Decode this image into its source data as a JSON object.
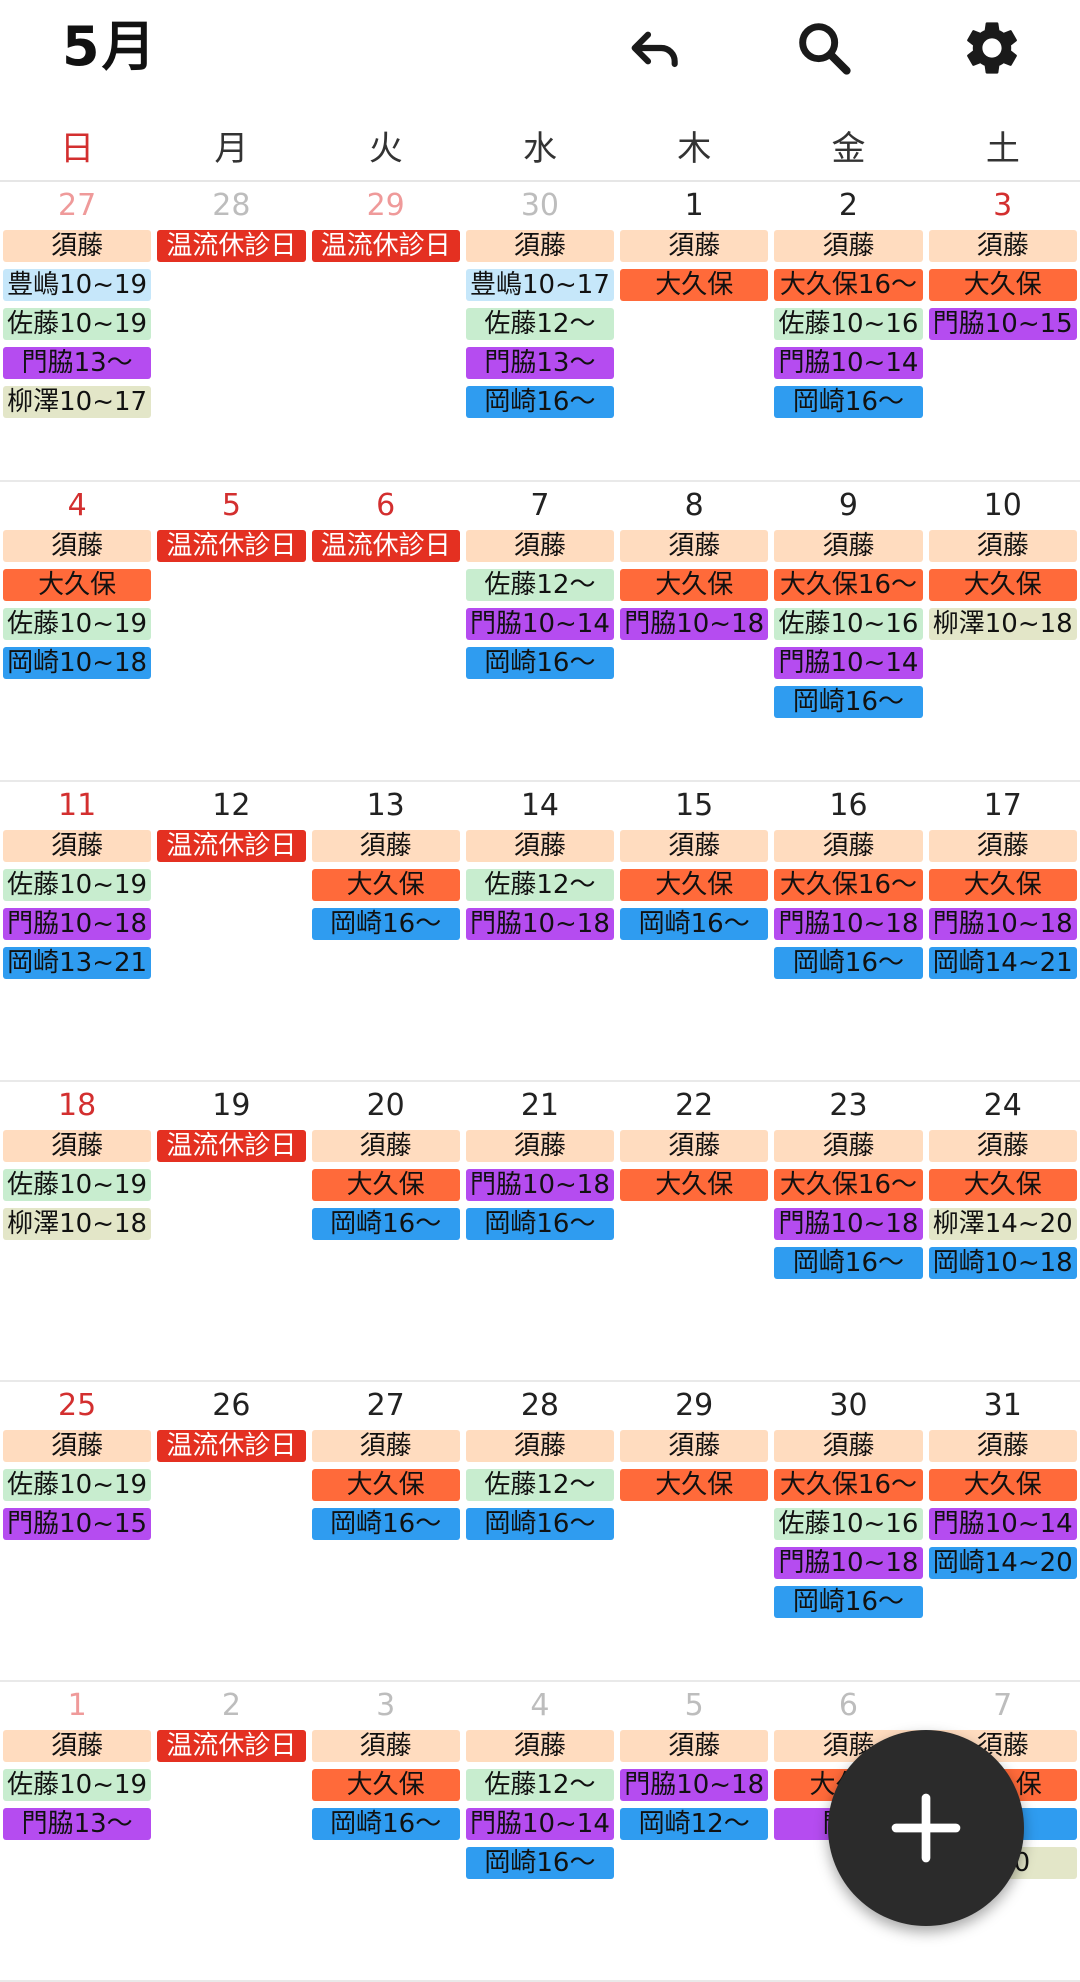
{
  "header": {
    "month": "5月"
  },
  "icons": {
    "undo": "undo-icon",
    "search": "search-icon",
    "settings": "gear-icon",
    "add": "plus-icon"
  },
  "weekdays": [
    "日",
    "月",
    "火",
    "水",
    "木",
    "金",
    "土"
  ],
  "colors": {
    "須藤": "#FFDCBF",
    "温流休診日": "#E43021",
    "大久保": "#FF6A3A",
    "豊嶋": "#C6E7FA",
    "佐藤": "#C8EDCF",
    "門脇": "#B54CF0",
    "柳澤": "#E3E6C8",
    "岡崎": "#2F9CF0"
  },
  "weeks": [
    [
      {
        "num": "27",
        "muted": true,
        "holiday": true,
        "events": [
          "須藤",
          "豊嶋10~19",
          "佐藤10~19",
          "門脇13～",
          "柳澤10~17"
        ]
      },
      {
        "num": "28",
        "muted": true,
        "holiday": false,
        "events": [
          "温流休診日"
        ]
      },
      {
        "num": "29",
        "muted": true,
        "holiday": true,
        "events": [
          "温流休診日"
        ]
      },
      {
        "num": "30",
        "muted": true,
        "holiday": false,
        "events": [
          "須藤",
          "豊嶋10~17",
          "佐藤12～",
          "門脇13～",
          "岡崎16～"
        ]
      },
      {
        "num": "1",
        "muted": false,
        "holiday": false,
        "events": [
          "須藤",
          "大久保"
        ]
      },
      {
        "num": "2",
        "muted": false,
        "holiday": false,
        "events": [
          "須藤",
          "大久保16～",
          "佐藤10~16",
          "門脇10~14",
          "岡崎16～"
        ]
      },
      {
        "num": "3",
        "muted": false,
        "holiday": true,
        "events": [
          "須藤",
          "大久保",
          "門脇10~15"
        ]
      }
    ],
    [
      {
        "num": "4",
        "muted": false,
        "holiday": true,
        "events": [
          "須藤",
          "大久保",
          "佐藤10~19",
          "岡崎10~18"
        ]
      },
      {
        "num": "5",
        "muted": false,
        "holiday": true,
        "events": [
          "温流休診日"
        ]
      },
      {
        "num": "6",
        "muted": false,
        "holiday": true,
        "events": [
          "温流休診日"
        ]
      },
      {
        "num": "7",
        "muted": false,
        "holiday": false,
        "events": [
          "須藤",
          "佐藤12～",
          "門脇10~14",
          "岡崎16～"
        ]
      },
      {
        "num": "8",
        "muted": false,
        "holiday": false,
        "events": [
          "須藤",
          "大久保",
          "門脇10~18"
        ]
      },
      {
        "num": "9",
        "muted": false,
        "holiday": false,
        "events": [
          "須藤",
          "大久保16～",
          "佐藤10~16",
          "門脇10~14",
          "岡崎16～"
        ]
      },
      {
        "num": "10",
        "muted": false,
        "holiday": false,
        "events": [
          "須藤",
          "大久保",
          "柳澤10~18"
        ]
      }
    ],
    [
      {
        "num": "11",
        "muted": false,
        "holiday": true,
        "events": [
          "須藤",
          "佐藤10~19",
          "門脇10~18",
          "岡崎13~21"
        ]
      },
      {
        "num": "12",
        "muted": false,
        "holiday": false,
        "events": [
          "温流休診日"
        ]
      },
      {
        "num": "13",
        "muted": false,
        "holiday": false,
        "events": [
          "須藤",
          "大久保",
          "岡崎16～"
        ]
      },
      {
        "num": "14",
        "muted": false,
        "holiday": false,
        "events": [
          "須藤",
          "佐藤12～",
          "門脇10~18"
        ]
      },
      {
        "num": "15",
        "muted": false,
        "holiday": false,
        "events": [
          "須藤",
          "大久保",
          "岡崎16～"
        ]
      },
      {
        "num": "16",
        "muted": false,
        "holiday": false,
        "events": [
          "須藤",
          "大久保16～",
          "門脇10~18",
          "岡崎16～"
        ]
      },
      {
        "num": "17",
        "muted": false,
        "holiday": false,
        "events": [
          "須藤",
          "大久保",
          "門脇10~18",
          "岡崎14~21"
        ]
      }
    ],
    [
      {
        "num": "18",
        "muted": false,
        "holiday": true,
        "events": [
          "須藤",
          "佐藤10~19",
          "柳澤10~18"
        ]
      },
      {
        "num": "19",
        "muted": false,
        "holiday": false,
        "events": [
          "温流休診日"
        ]
      },
      {
        "num": "20",
        "muted": false,
        "holiday": false,
        "events": [
          "須藤",
          "大久保",
          "岡崎16～"
        ]
      },
      {
        "num": "21",
        "muted": false,
        "holiday": false,
        "events": [
          "須藤",
          "門脇10~18",
          "岡崎16～"
        ]
      },
      {
        "num": "22",
        "muted": false,
        "holiday": false,
        "events": [
          "須藤",
          "大久保"
        ]
      },
      {
        "num": "23",
        "muted": false,
        "holiday": false,
        "events": [
          "須藤",
          "大久保16～",
          "門脇10~18",
          "岡崎16～"
        ]
      },
      {
        "num": "24",
        "muted": false,
        "holiday": false,
        "events": [
          "須藤",
          "大久保",
          "柳澤14~20",
          "岡崎10~18"
        ]
      }
    ],
    [
      {
        "num": "25",
        "muted": false,
        "holiday": true,
        "events": [
          "須藤",
          "佐藤10~19",
          "門脇10~15"
        ]
      },
      {
        "num": "26",
        "muted": false,
        "holiday": false,
        "events": [
          "温流休診日"
        ]
      },
      {
        "num": "27",
        "muted": false,
        "holiday": false,
        "events": [
          "須藤",
          "大久保",
          "岡崎16～"
        ]
      },
      {
        "num": "28",
        "muted": false,
        "holiday": false,
        "events": [
          "須藤",
          "佐藤12～",
          "岡崎16～"
        ]
      },
      {
        "num": "29",
        "muted": false,
        "holiday": false,
        "events": [
          "須藤",
          "大久保"
        ]
      },
      {
        "num": "30",
        "muted": false,
        "holiday": false,
        "events": [
          "須藤",
          "大久保16～",
          "佐藤10~16",
          "門脇10~18",
          "岡崎16～"
        ]
      },
      {
        "num": "31",
        "muted": false,
        "holiday": false,
        "events": [
          "須藤",
          "大久保",
          "門脇10~14",
          "岡崎14~20"
        ]
      }
    ],
    [
      {
        "num": "1",
        "muted": true,
        "holiday": true,
        "events": [
          "須藤",
          "佐藤10~19",
          "門脇13～"
        ]
      },
      {
        "num": "2",
        "muted": true,
        "holiday": false,
        "events": [
          "温流休診日"
        ]
      },
      {
        "num": "3",
        "muted": true,
        "holiday": false,
        "events": [
          "須藤",
          "大久保",
          "岡崎16～"
        ]
      },
      {
        "num": "4",
        "muted": true,
        "holiday": false,
        "events": [
          "須藤",
          "佐藤12～",
          "門脇10~14",
          "岡崎16～"
        ]
      },
      {
        "num": "5",
        "muted": true,
        "holiday": false,
        "events": [
          "須藤",
          "門脇10~18",
          "岡崎12～"
        ]
      },
      {
        "num": "6",
        "muted": true,
        "holiday": false,
        "events": [
          "須藤",
          "大久保",
          "門脇"
        ]
      },
      {
        "num": "7",
        "muted": true,
        "holiday": false,
        "events": [
          "須藤",
          "大久保",
          "19",
          "~20"
        ]
      }
    ]
  ]
}
